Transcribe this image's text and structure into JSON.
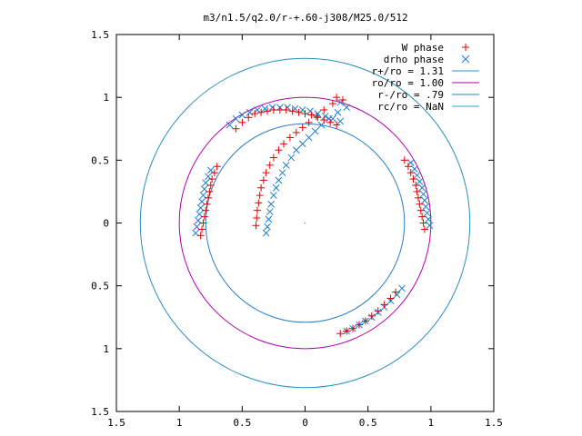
{
  "chart_data": {
    "type": "scatter",
    "title": "m3/n1.5/q2.0/r-+.60-j308/M25.0/512",
    "xlabel": "",
    "ylabel": "",
    "xlim": [
      -1.5,
      1.5
    ],
    "ylim": [
      -1.5,
      1.5
    ],
    "x_tick_values": [
      -1.5,
      -1,
      -0.5,
      0,
      0.5,
      1,
      1.5
    ],
    "x_tick_labels": [
      "1.5",
      "1",
      "0.5",
      "0",
      "0.5",
      "1",
      "1.5"
    ],
    "y_tick_values": [
      1.5,
      1,
      0.5,
      0,
      -0.5,
      -1,
      -1.5
    ],
    "y_tick_labels": [
      "1.5",
      "1",
      "0.5",
      "0",
      "0.5",
      "1",
      "1.5"
    ],
    "grid": false,
    "legend_position": "top-right",
    "legend": [
      {
        "label": "W phase",
        "marker": "plus",
        "color": "#e00000"
      },
      {
        "label": "drho phase",
        "marker": "cross",
        "color": "#1a7fd0"
      },
      {
        "label": "r+/ro = 1.31",
        "marker": "line",
        "color": "#2a8fc0"
      },
      {
        "label": "ro/ro = 1.00",
        "marker": "line",
        "color": "#b000b0"
      },
      {
        "label": "r-/ro = .79",
        "marker": "line",
        "color": "#2a7fc8"
      },
      {
        "label": "rc/ro = NaN",
        "marker": "line",
        "color": "#30a0d0"
      }
    ],
    "circles": [
      {
        "name": "r+/ro = 1.31",
        "radius": 1.31,
        "color": "#2a8fc0"
      },
      {
        "name": "ro/ro = 1.00",
        "radius": 1.0,
        "color": "#b000b0"
      },
      {
        "name": "r-/ro = .79",
        "radius": 0.79,
        "color": "#2a7fc8"
      }
    ],
    "arms": [
      {
        "w_points": [
          [
            0.25,
            1.0
          ],
          [
            0.3,
            0.98
          ],
          [
            0.22,
            0.95
          ],
          [
            0.15,
            0.9
          ],
          [
            0.09,
            0.85
          ],
          [
            0.03,
            0.8
          ],
          [
            -0.02,
            0.76
          ],
          [
            -0.07,
            0.72
          ],
          [
            -0.12,
            0.68
          ],
          [
            -0.17,
            0.63
          ],
          [
            -0.21,
            0.58
          ],
          [
            -0.25,
            0.52
          ],
          [
            -0.28,
            0.46
          ],
          [
            -0.31,
            0.4
          ],
          [
            -0.33,
            0.34
          ],
          [
            -0.35,
            0.28
          ],
          [
            -0.36,
            0.22
          ],
          [
            -0.37,
            0.16
          ],
          [
            -0.38,
            0.1
          ],
          [
            -0.385,
            0.04
          ],
          [
            -0.39,
            -0.02
          ]
        ],
        "drho_points": [
          [
            0.28,
            0.96
          ],
          [
            0.33,
            0.92
          ],
          [
            0.26,
            0.88
          ],
          [
            0.19,
            0.83
          ],
          [
            0.13,
            0.78
          ],
          [
            0.08,
            0.73
          ],
          [
            0.03,
            0.68
          ],
          [
            -0.02,
            0.63
          ],
          [
            -0.07,
            0.58
          ],
          [
            -0.11,
            0.52
          ],
          [
            -0.15,
            0.46
          ],
          [
            -0.18,
            0.4
          ],
          [
            -0.21,
            0.34
          ],
          [
            -0.23,
            0.28
          ],
          [
            -0.25,
            0.22
          ],
          [
            -0.27,
            0.15
          ],
          [
            -0.28,
            0.09
          ],
          [
            -0.29,
            0.03
          ],
          [
            -0.3,
            -0.03
          ],
          [
            -0.31,
            -0.08
          ]
        ]
      },
      {
        "w_points": [
          [
            -0.55,
            0.75
          ],
          [
            -0.5,
            0.8
          ],
          [
            -0.45,
            0.84
          ],
          [
            -0.4,
            0.87
          ],
          [
            -0.35,
            0.88
          ],
          [
            -0.3,
            0.89
          ],
          [
            -0.25,
            0.9
          ],
          [
            -0.2,
            0.9
          ],
          [
            -0.15,
            0.9
          ],
          [
            -0.1,
            0.89
          ],
          [
            -0.05,
            0.88
          ],
          [
            0.0,
            0.87
          ],
          [
            0.05,
            0.86
          ],
          [
            0.1,
            0.84
          ],
          [
            0.15,
            0.82
          ],
          [
            0.2,
            0.8
          ],
          [
            0.25,
            0.78
          ]
        ],
        "drho_points": [
          [
            -0.6,
            0.78
          ],
          [
            -0.55,
            0.83
          ],
          [
            -0.5,
            0.86
          ],
          [
            -0.44,
            0.88
          ],
          [
            -0.38,
            0.9
          ],
          [
            -0.32,
            0.91
          ],
          [
            -0.26,
            0.92
          ],
          [
            -0.2,
            0.92
          ],
          [
            -0.14,
            0.92
          ],
          [
            -0.08,
            0.91
          ],
          [
            -0.02,
            0.9
          ],
          [
            0.04,
            0.89
          ],
          [
            0.1,
            0.87
          ],
          [
            0.16,
            0.85
          ],
          [
            0.22,
            0.83
          ],
          [
            0.28,
            0.81
          ]
        ]
      },
      {
        "w_points": [
          [
            -0.7,
            0.45
          ],
          [
            -0.72,
            0.4
          ],
          [
            -0.74,
            0.35
          ],
          [
            -0.75,
            0.3
          ],
          [
            -0.76,
            0.25
          ],
          [
            -0.77,
            0.2
          ],
          [
            -0.78,
            0.15
          ],
          [
            -0.79,
            0.1
          ],
          [
            -0.8,
            0.05
          ],
          [
            -0.81,
            0.0
          ],
          [
            -0.82,
            -0.05
          ],
          [
            -0.83,
            -0.1
          ]
        ],
        "drho_points": [
          [
            -0.75,
            0.42
          ],
          [
            -0.77,
            0.37
          ],
          [
            -0.79,
            0.32
          ],
          [
            -0.8,
            0.27
          ],
          [
            -0.81,
            0.22
          ],
          [
            -0.82,
            0.17
          ],
          [
            -0.83,
            0.12
          ],
          [
            -0.84,
            0.07
          ],
          [
            -0.85,
            0.02
          ],
          [
            -0.86,
            -0.03
          ],
          [
            -0.87,
            -0.08
          ]
        ]
      },
      {
        "w_points": [
          [
            0.72,
            -0.55
          ],
          [
            0.68,
            -0.6
          ],
          [
            0.63,
            -0.65
          ],
          [
            0.58,
            -0.7
          ],
          [
            0.53,
            -0.74
          ],
          [
            0.48,
            -0.78
          ],
          [
            0.43,
            -0.81
          ],
          [
            0.38,
            -0.84
          ],
          [
            0.33,
            -0.86
          ],
          [
            0.28,
            -0.88
          ]
        ],
        "drho_points": [
          [
            0.77,
            -0.52
          ],
          [
            0.73,
            -0.57
          ],
          [
            0.68,
            -0.62
          ],
          [
            0.63,
            -0.67
          ],
          [
            0.58,
            -0.71
          ],
          [
            0.53,
            -0.75
          ],
          [
            0.48,
            -0.78
          ],
          [
            0.43,
            -0.81
          ],
          [
            0.38,
            -0.84
          ],
          [
            0.33,
            -0.86
          ]
        ]
      },
      {
        "w_points": [
          [
            0.79,
            0.5
          ],
          [
            0.82,
            0.45
          ],
          [
            0.84,
            0.4
          ],
          [
            0.86,
            0.35
          ],
          [
            0.88,
            0.3
          ],
          [
            0.89,
            0.25
          ],
          [
            0.9,
            0.2
          ],
          [
            0.91,
            0.15
          ],
          [
            0.92,
            0.1
          ],
          [
            0.93,
            0.05
          ],
          [
            0.94,
            0.0
          ],
          [
            0.95,
            -0.05
          ]
        ],
        "drho_points": [
          [
            0.84,
            0.48
          ],
          [
            0.87,
            0.43
          ],
          [
            0.89,
            0.38
          ],
          [
            0.91,
            0.33
          ],
          [
            0.93,
            0.28
          ],
          [
            0.94,
            0.23
          ],
          [
            0.95,
            0.18
          ],
          [
            0.96,
            0.13
          ],
          [
            0.97,
            0.08
          ],
          [
            0.98,
            0.03
          ],
          [
            0.99,
            -0.02
          ]
        ]
      }
    ]
  }
}
